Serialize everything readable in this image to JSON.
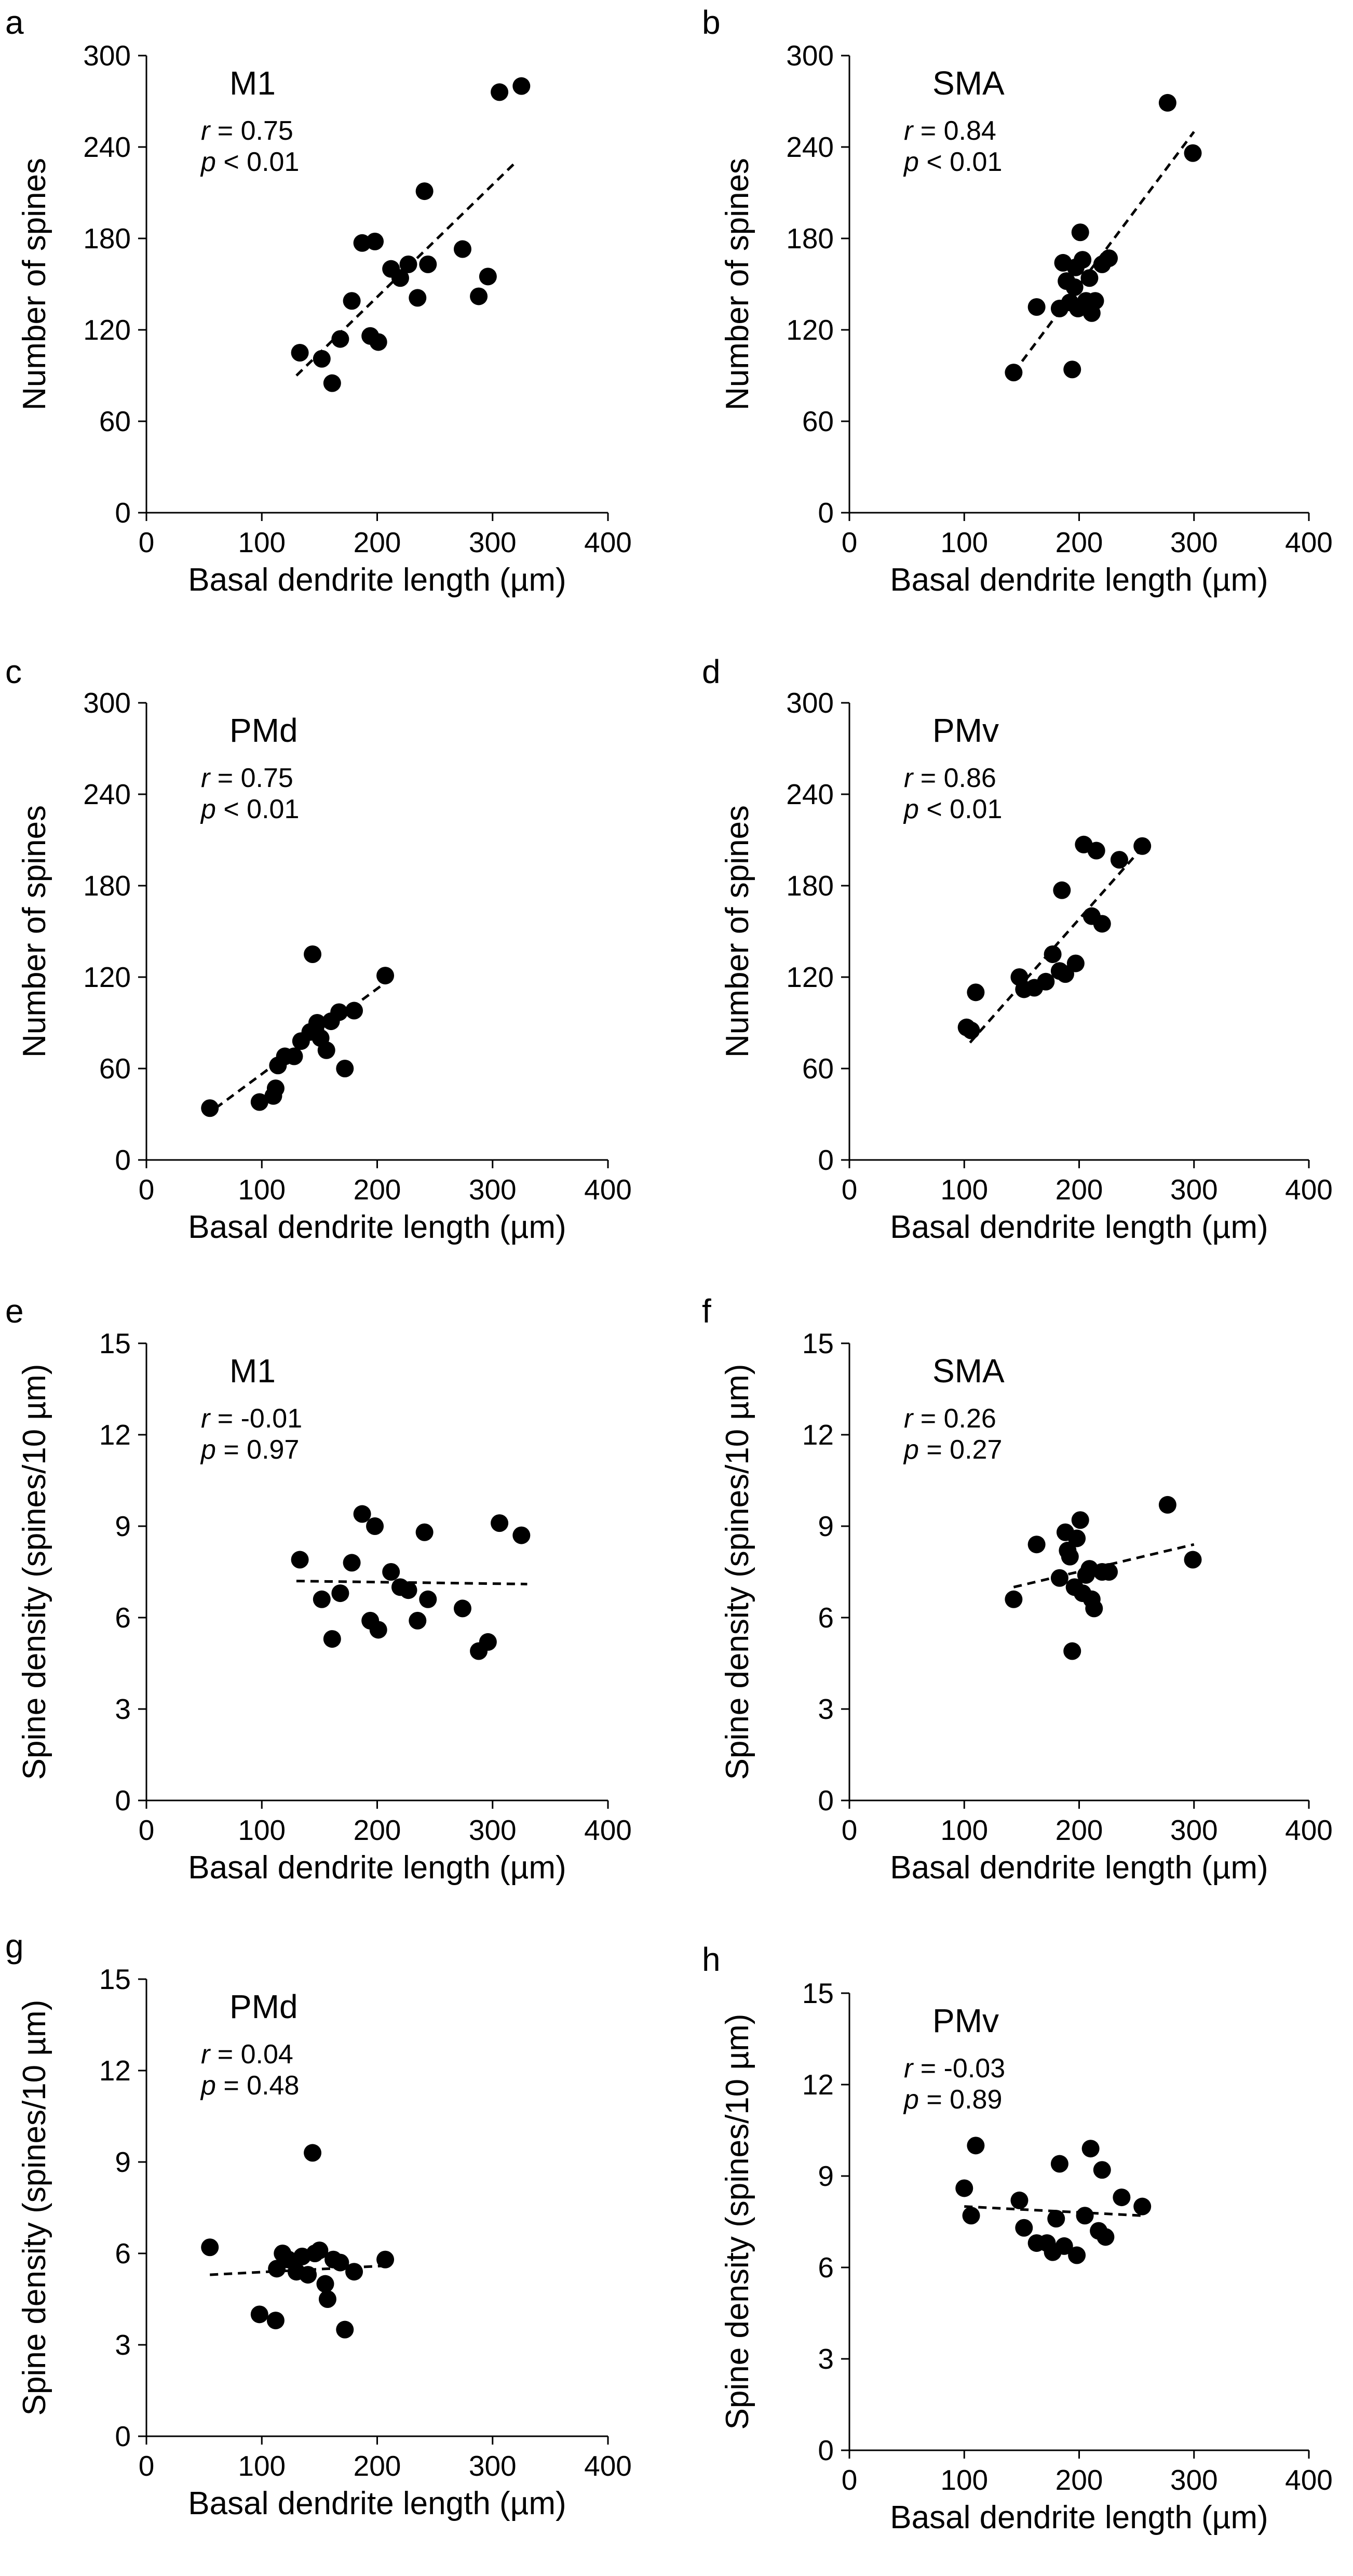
{
  "figure": {
    "panels": [
      {
        "letter": "a",
        "region": "M1",
        "r_label": "r",
        "r_value": "= 0.75",
        "p_label": "p",
        "p_value": "< 0.01"
      },
      {
        "letter": "b",
        "region": "SMA",
        "r_label": "r",
        "r_value": "= 0.84",
        "p_label": "p",
        "p_value": "< 0.01"
      },
      {
        "letter": "c",
        "region": "PMd",
        "r_label": "r",
        "r_value": "= 0.75",
        "p_label": "p",
        "p_value": "< 0.01"
      },
      {
        "letter": "d",
        "region": "PMv",
        "r_label": "r",
        "r_value": "= 0.86",
        "p_label": "p",
        "p_value": "< 0.01"
      },
      {
        "letter": "e",
        "region": "M1",
        "r_label": "r",
        "r_value": "= -0.01",
        "p_label": "p",
        "p_value": "= 0.97"
      },
      {
        "letter": "f",
        "region": "SMA",
        "r_label": "r",
        "r_value": "= 0.26",
        "p_label": "p",
        "p_value": "= 0.27"
      },
      {
        "letter": "g",
        "region": "PMd",
        "r_label": "r",
        "r_value": "= 0.04",
        "p_label": "p",
        "p_value": "= 0.48"
      },
      {
        "letter": "h",
        "region": "PMv",
        "r_label": "r",
        "r_value": "= -0.03",
        "p_label": "p",
        "p_value": "= 0.89"
      }
    ]
  },
  "chart_data": [
    {
      "panel": "a",
      "type": "scatter",
      "title": "M1",
      "xlabel": "Basal dendrite length (µm)",
      "ylabel": "Number of spines",
      "xlim": [
        0,
        400
      ],
      "ylim": [
        0,
        300
      ],
      "xticks": [
        0,
        100,
        200,
        300,
        400
      ],
      "yticks": [
        0,
        60,
        120,
        180,
        240,
        300
      ],
      "points": [
        [
          133,
          105
        ],
        [
          152,
          101
        ],
        [
          161,
          85
        ],
        [
          168,
          114
        ],
        [
          178,
          139
        ],
        [
          187,
          177
        ],
        [
          194,
          116
        ],
        [
          198,
          178
        ],
        [
          201,
          112
        ],
        [
          212,
          160
        ],
        [
          220,
          154
        ],
        [
          227,
          163
        ],
        [
          235,
          141
        ],
        [
          241,
          211
        ],
        [
          244,
          163
        ],
        [
          274,
          173
        ],
        [
          288,
          142
        ],
        [
          296,
          155
        ],
        [
          306,
          276
        ],
        [
          325,
          280
        ]
      ],
      "fit": [
        [
          130,
          90
        ],
        [
          320,
          230
        ]
      ],
      "annotations": {
        "r": "0.75",
        "p": "< 0.01"
      }
    },
    {
      "panel": "b",
      "type": "scatter",
      "title": "SMA",
      "xlabel": "Basal dendrite length (µm)",
      "ylabel": "Number of spines",
      "xlim": [
        0,
        400
      ],
      "ylim": [
        0,
        300
      ],
      "xticks": [
        0,
        100,
        200,
        300,
        400
      ],
      "yticks": [
        0,
        60,
        120,
        180,
        240,
        300
      ],
      "points": [
        [
          143,
          92
        ],
        [
          163,
          135
        ],
        [
          183,
          134
        ],
        [
          186,
          164
        ],
        [
          189,
          152
        ],
        [
          192,
          138
        ],
        [
          194,
          94
        ],
        [
          196,
          148
        ],
        [
          197,
          161
        ],
        [
          199,
          134
        ],
        [
          201,
          184
        ],
        [
          203,
          166
        ],
        [
          206,
          139
        ],
        [
          209,
          154
        ],
        [
          211,
          131
        ],
        [
          214,
          139
        ],
        [
          220,
          163
        ],
        [
          226,
          167
        ],
        [
          277,
          269
        ],
        [
          299,
          236
        ]
      ],
      "fit": [
        [
          143,
          92
        ],
        [
          300,
          250
        ]
      ],
      "annotations": {
        "r": "0.84",
        "p": "< 0.01"
      }
    },
    {
      "panel": "c",
      "type": "scatter",
      "title": "PMd",
      "xlabel": "Basal dendrite length (µm)",
      "ylabel": "Number of spines",
      "xlim": [
        0,
        400
      ],
      "ylim": [
        0,
        300
      ],
      "xticks": [
        0,
        100,
        200,
        300,
        400
      ],
      "yticks": [
        0,
        60,
        120,
        180,
        240,
        300
      ],
      "points": [
        [
          55,
          34
        ],
        [
          98,
          38
        ],
        [
          110,
          42
        ],
        [
          112,
          47
        ],
        [
          114,
          62
        ],
        [
          120,
          68
        ],
        [
          128,
          68
        ],
        [
          134,
          78
        ],
        [
          142,
          84
        ],
        [
          144,
          135
        ],
        [
          148,
          90
        ],
        [
          151,
          80
        ],
        [
          156,
          72
        ],
        [
          160,
          91
        ],
        [
          167,
          97
        ],
        [
          172,
          60
        ],
        [
          180,
          98
        ],
        [
          207,
          121
        ]
      ],
      "fit": [
        [
          60,
          34
        ],
        [
          210,
          118
        ]
      ],
      "annotations": {
        "r": "0.75",
        "p": "< 0.01"
      }
    },
    {
      "panel": "d",
      "type": "scatter",
      "title": "PMv",
      "xlabel": "Basal dendrite length (µm)",
      "ylabel": "Number of spines",
      "xlim": [
        0,
        400
      ],
      "ylim": [
        0,
        300
      ],
      "xticks": [
        0,
        100,
        200,
        300,
        400
      ],
      "yticks": [
        0,
        60,
        120,
        180,
        240,
        300
      ],
      "points": [
        [
          102,
          87
        ],
        [
          110,
          110
        ],
        [
          148,
          120
        ],
        [
          152,
          112
        ],
        [
          161,
          113
        ],
        [
          171,
          117
        ],
        [
          177,
          135
        ],
        [
          183,
          124
        ],
        [
          185,
          177
        ],
        [
          197,
          129
        ],
        [
          204,
          207
        ],
        [
          211,
          160
        ],
        [
          215,
          203
        ],
        [
          220,
          155
        ],
        [
          235,
          197
        ],
        [
          255,
          206
        ],
        [
          106,
          85
        ],
        [
          188,
          122
        ]
      ],
      "fit": [
        [
          105,
          77
        ],
        [
          255,
          205
        ]
      ],
      "annotations": {
        "r": "0.86",
        "p": "< 0.01"
      }
    },
    {
      "panel": "e",
      "type": "scatter",
      "title": "M1",
      "xlabel": "Basal dendrite length (µm)",
      "ylabel": "Spine density (spines/10 µm)",
      "xlim": [
        0,
        400
      ],
      "ylim": [
        0,
        15
      ],
      "xticks": [
        0,
        100,
        200,
        300,
        400
      ],
      "yticks": [
        0,
        3,
        6,
        9,
        12,
        15
      ],
      "points": [
        [
          133,
          7.9
        ],
        [
          152,
          6.6
        ],
        [
          161,
          5.3
        ],
        [
          168,
          6.8
        ],
        [
          178,
          7.8
        ],
        [
          187,
          9.4
        ],
        [
          194,
          5.9
        ],
        [
          198,
          9.0
        ],
        [
          201,
          5.6
        ],
        [
          212,
          7.5
        ],
        [
          220,
          7.0
        ],
        [
          227,
          6.9
        ],
        [
          235,
          5.9
        ],
        [
          241,
          8.8
        ],
        [
          244,
          6.6
        ],
        [
          274,
          6.3
        ],
        [
          288,
          4.9
        ],
        [
          296,
          5.2
        ],
        [
          306,
          9.1
        ],
        [
          325,
          8.7
        ]
      ],
      "fit": [
        [
          130,
          7.2
        ],
        [
          330,
          7.1
        ]
      ],
      "annotations": {
        "r": "-0.01",
        "p": "0.97"
      }
    },
    {
      "panel": "f",
      "type": "scatter",
      "title": "SMA",
      "xlabel": "Basal dendrite length (µm)",
      "ylabel": "Spine density (spines/10 µm)",
      "xlim": [
        0,
        400
      ],
      "ylim": [
        0,
        15
      ],
      "xticks": [
        0,
        100,
        200,
        300,
        400
      ],
      "yticks": [
        0,
        3,
        6,
        9,
        12,
        15
      ],
      "points": [
        [
          143,
          6.6
        ],
        [
          163,
          8.4
        ],
        [
          183,
          7.3
        ],
        [
          188,
          8.8
        ],
        [
          190,
          8.2
        ],
        [
          192,
          8.0
        ],
        [
          194,
          4.9
        ],
        [
          196,
          7.0
        ],
        [
          198,
          8.6
        ],
        [
          201,
          9.2
        ],
        [
          203,
          6.8
        ],
        [
          206,
          7.4
        ],
        [
          209,
          7.6
        ],
        [
          211,
          6.6
        ],
        [
          213,
          6.3
        ],
        [
          220,
          7.5
        ],
        [
          226,
          7.5
        ],
        [
          277,
          9.7
        ],
        [
          299,
          7.9
        ]
      ],
      "fit": [
        [
          143,
          7.0
        ],
        [
          300,
          8.4
        ]
      ],
      "annotations": {
        "r": "0.26",
        "p": "0.27"
      }
    },
    {
      "panel": "g",
      "type": "scatter",
      "title": "PMd",
      "xlabel": "Basal dendrite length (µm)",
      "ylabel": "Spine density (spines/10 µm)",
      "xlim": [
        0,
        400
      ],
      "ylim": [
        0,
        15
      ],
      "xticks": [
        0,
        100,
        200,
        300,
        400
      ],
      "yticks": [
        0,
        3,
        6,
        9,
        12,
        15
      ],
      "points": [
        [
          55,
          6.2
        ],
        [
          98,
          4.0
        ],
        [
          112,
          3.8
        ],
        [
          113,
          5.5
        ],
        [
          118,
          6.0
        ],
        [
          123,
          5.8
        ],
        [
          130,
          5.4
        ],
        [
          135,
          5.9
        ],
        [
          140,
          5.3
        ],
        [
          144,
          9.3
        ],
        [
          146,
          6.0
        ],
        [
          150,
          6.1
        ],
        [
          155,
          5.0
        ],
        [
          157,
          4.5
        ],
        [
          162,
          5.8
        ],
        [
          168,
          5.7
        ],
        [
          172,
          3.5
        ],
        [
          180,
          5.4
        ],
        [
          207,
          5.8
        ]
      ],
      "fit": [
        [
          55,
          5.3
        ],
        [
          210,
          5.6
        ]
      ],
      "annotations": {
        "r": "0.04",
        "p": "0.48"
      }
    },
    {
      "panel": "h",
      "type": "scatter",
      "title": "PMv",
      "xlabel": "Basal dendrite length (µm)",
      "ylabel": "Spine density (spines/10 µm)",
      "xlim": [
        0,
        400
      ],
      "ylim": [
        0,
        15
      ],
      "xticks": [
        0,
        100,
        200,
        300,
        400
      ],
      "yticks": [
        0,
        3,
        6,
        9,
        12,
        15
      ],
      "points": [
        [
          100,
          8.6
        ],
        [
          106,
          7.7
        ],
        [
          110,
          10.0
        ],
        [
          148,
          8.2
        ],
        [
          152,
          7.3
        ],
        [
          163,
          6.8
        ],
        [
          172,
          6.8
        ],
        [
          177,
          6.5
        ],
        [
          180,
          7.6
        ],
        [
          183,
          9.4
        ],
        [
          187,
          6.7
        ],
        [
          198,
          6.4
        ],
        [
          205,
          7.7
        ],
        [
          210,
          9.9
        ],
        [
          217,
          7.2
        ],
        [
          220,
          9.2
        ],
        [
          223,
          7.0
        ],
        [
          237,
          8.3
        ],
        [
          255,
          8.0
        ]
      ],
      "fit": [
        [
          100,
          8.0
        ],
        [
          255,
          7.7
        ]
      ],
      "annotations": {
        "r": "-0.03",
        "p": "0.89"
      }
    }
  ]
}
